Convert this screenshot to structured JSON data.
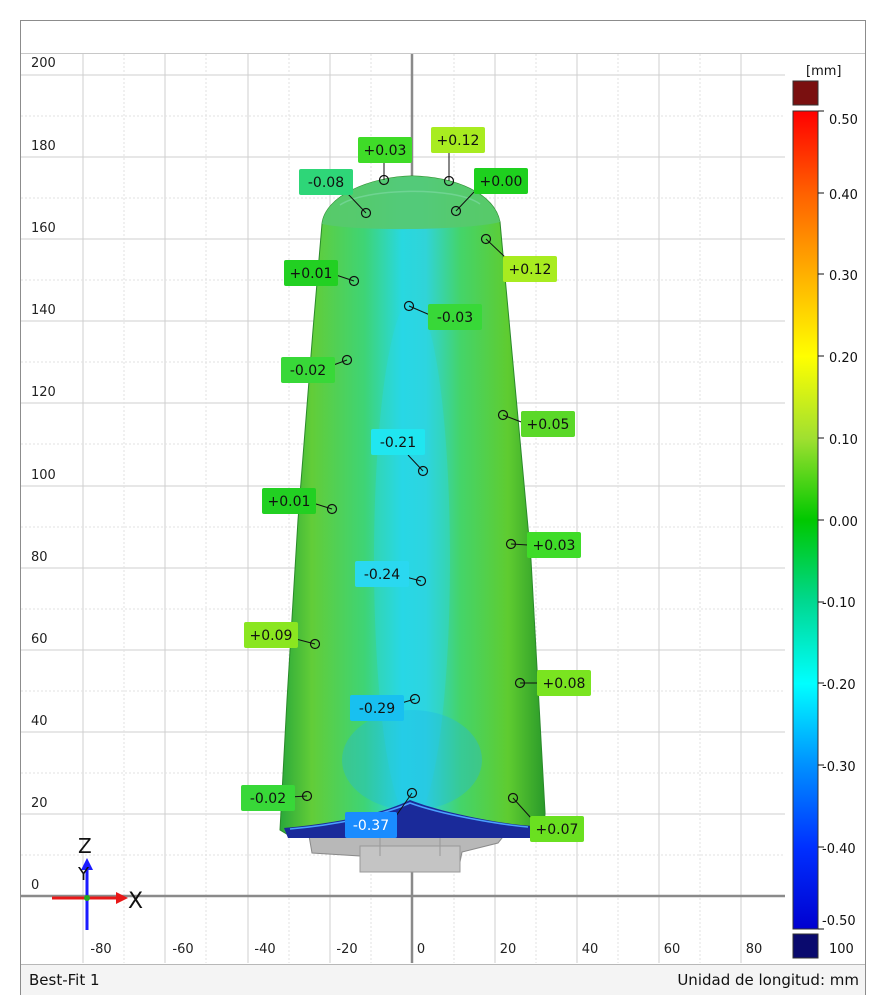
{
  "status_bar": {
    "result_name": "Best-Fit 1",
    "unit_label": "Unidad de longitud: mm"
  },
  "axis": {
    "y_ticks": [
      "200",
      "180",
      "160",
      "140",
      "120",
      "100",
      "80",
      "60",
      "40",
      "20",
      "0"
    ],
    "x_ticks": [
      "-80",
      "-60",
      "-40",
      "-20",
      "0",
      "20",
      "40",
      "60",
      "80"
    ],
    "triad_z": "Z",
    "triad_y": "Y",
    "triad_x": "X"
  },
  "colorbar": {
    "unit": "[mm]",
    "labels": [
      "0.50",
      "0.40",
      "0.30",
      "0.20",
      "0.10",
      "0.00",
      "-0.10",
      "-0.20",
      "-0.30",
      "-0.40",
      "-0.50"
    ],
    "overflow_label": "100",
    "top_color": "#7a1010",
    "bottom_color": "#0a0a6e"
  },
  "annotations": [
    {
      "text": "+0.03",
      "color": "#3fdc28"
    },
    {
      "text": "+0.12",
      "color": "#a8ec20"
    },
    {
      "text": "-0.08",
      "color": "#2ed678"
    },
    {
      "text": "+0.00",
      "color": "#1ed01e"
    },
    {
      "text": "+0.12",
      "color": "#a8ec20"
    },
    {
      "text": "+0.01",
      "color": "#22d022"
    },
    {
      "text": "-0.03",
      "color": "#38d838"
    },
    {
      "text": "-0.02",
      "color": "#38d838"
    },
    {
      "text": "+0.05",
      "color": "#5ad828"
    },
    {
      "text": "-0.21",
      "color": "#20e6f0"
    },
    {
      "text": "+0.01",
      "color": "#22d022"
    },
    {
      "text": "+0.03",
      "color": "#3fdc28"
    },
    {
      "text": "-0.24",
      "color": "#2ad8f0"
    },
    {
      "text": "+0.09",
      "color": "#8ae620"
    },
    {
      "text": "+0.08",
      "color": "#7ae420"
    },
    {
      "text": "-0.29",
      "color": "#18c0f0"
    },
    {
      "text": "-0.02",
      "color": "#38d838"
    },
    {
      "text": "-0.37",
      "color": "#1a8cff"
    },
    {
      "text": "+0.07",
      "color": "#6ae020"
    }
  ]
}
